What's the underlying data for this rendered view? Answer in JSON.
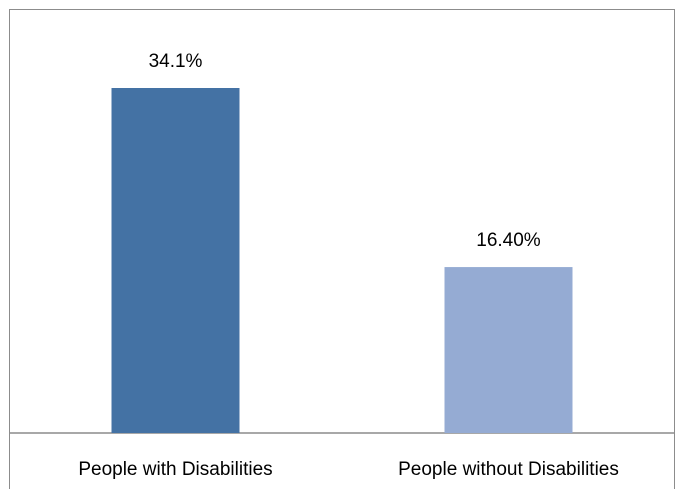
{
  "chart_data": {
    "type": "bar",
    "categories": [
      "People with Disabilities",
      "People without Disabilities"
    ],
    "values": [
      34.1,
      16.4
    ],
    "data_labels": [
      "34.1%",
      "16.40%"
    ],
    "colors": [
      "#4472a4",
      "#95abd3"
    ],
    "title": "",
    "xlabel": "",
    "ylabel": "",
    "ylim": [
      0,
      40
    ],
    "grid": false,
    "legend": "none"
  }
}
